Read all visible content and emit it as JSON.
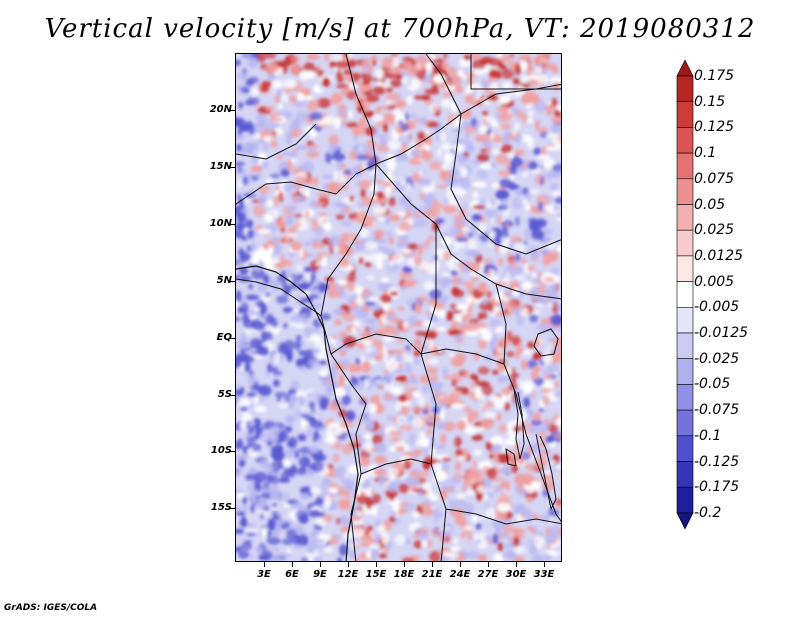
{
  "title": "Vertical velocity [m/s] at 700hPa, VT: 2019080312",
  "footer": "GrADS: IGES/COLA",
  "lat_labels": [
    "20N",
    "15N",
    "10N",
    "5N",
    "EQ",
    "5S",
    "10S",
    "15S"
  ],
  "lon_labels": [
    "3E",
    "6E",
    "9E",
    "12E",
    "15E",
    "18E",
    "21E",
    "24E",
    "27E",
    "30E",
    "33E"
  ],
  "colorbar": {
    "labels": [
      "0.175",
      "0.15",
      "0.125",
      "0.1",
      "0.075",
      "0.05",
      "0.025",
      "0.0125",
      "0.005",
      "-0.005",
      "-0.0125",
      "-0.025",
      "-0.05",
      "-0.075",
      "-0.1",
      "-0.125",
      "-0.175",
      "-0.2"
    ],
    "colors": [
      "#9b1b1b",
      "#b82525",
      "#cc3a3a",
      "#dc5555",
      "#e57272",
      "#ec9090",
      "#f2b0b0",
      "#f8cccc",
      "#fde8e8",
      "#ffffff",
      "#e6e6fb",
      "#cbcbf5",
      "#b0b0ef",
      "#9090e6",
      "#7373dc",
      "#5050cc",
      "#3535b8",
      "#1f1f9e",
      "#151580"
    ]
  },
  "field_colors": {
    "positive_strong": "#c83232",
    "positive_weak": "#f0a0a0",
    "negative_weak": "#b9b9f2",
    "negative_strong": "#5a5ad2",
    "background": "#d8d8f6"
  }
}
